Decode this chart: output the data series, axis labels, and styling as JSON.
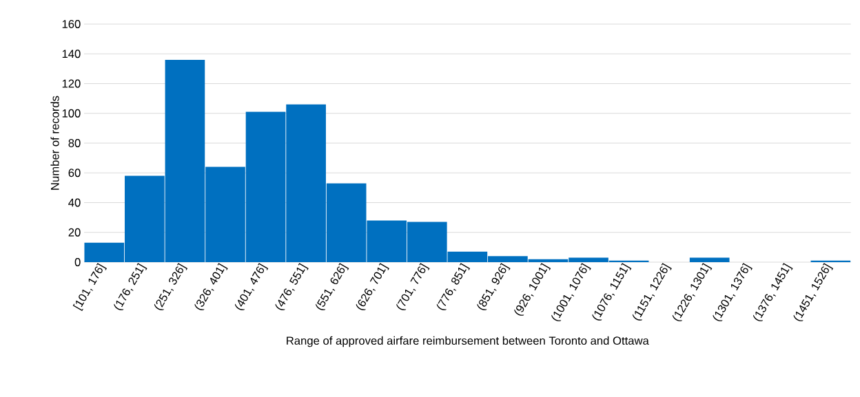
{
  "chart_data": {
    "type": "bar",
    "xlabel": "Range of approved airfare reimbursement between Toronto and Ottawa",
    "ylabel": "Number of records",
    "categories": [
      "[101, 176]",
      "(176, 251]",
      "(251, 326]",
      "(326, 401]",
      "(401, 476]",
      "(476, 551]",
      "(551, 626]",
      "(626, 701]",
      "(701, 776]",
      "(776, 851]",
      "(851, 926]",
      "(926, 1001]",
      "(1001, 1076]",
      "(1076, 1151]",
      "(1151, 1226]",
      "(1226, 1301]",
      "(1301, 1376]",
      "(1376, 1451]",
      "(1451, 1526]"
    ],
    "values": [
      13,
      58,
      136,
      64,
      101,
      106,
      53,
      28,
      27,
      7,
      4,
      2,
      3,
      1,
      0,
      3,
      0,
      0,
      1
    ],
    "color": "#0070c0",
    "ylim": [
      0,
      160
    ],
    "yticks": [
      0,
      20,
      40,
      60,
      80,
      100,
      120,
      140,
      160
    ],
    "grid": "y"
  }
}
